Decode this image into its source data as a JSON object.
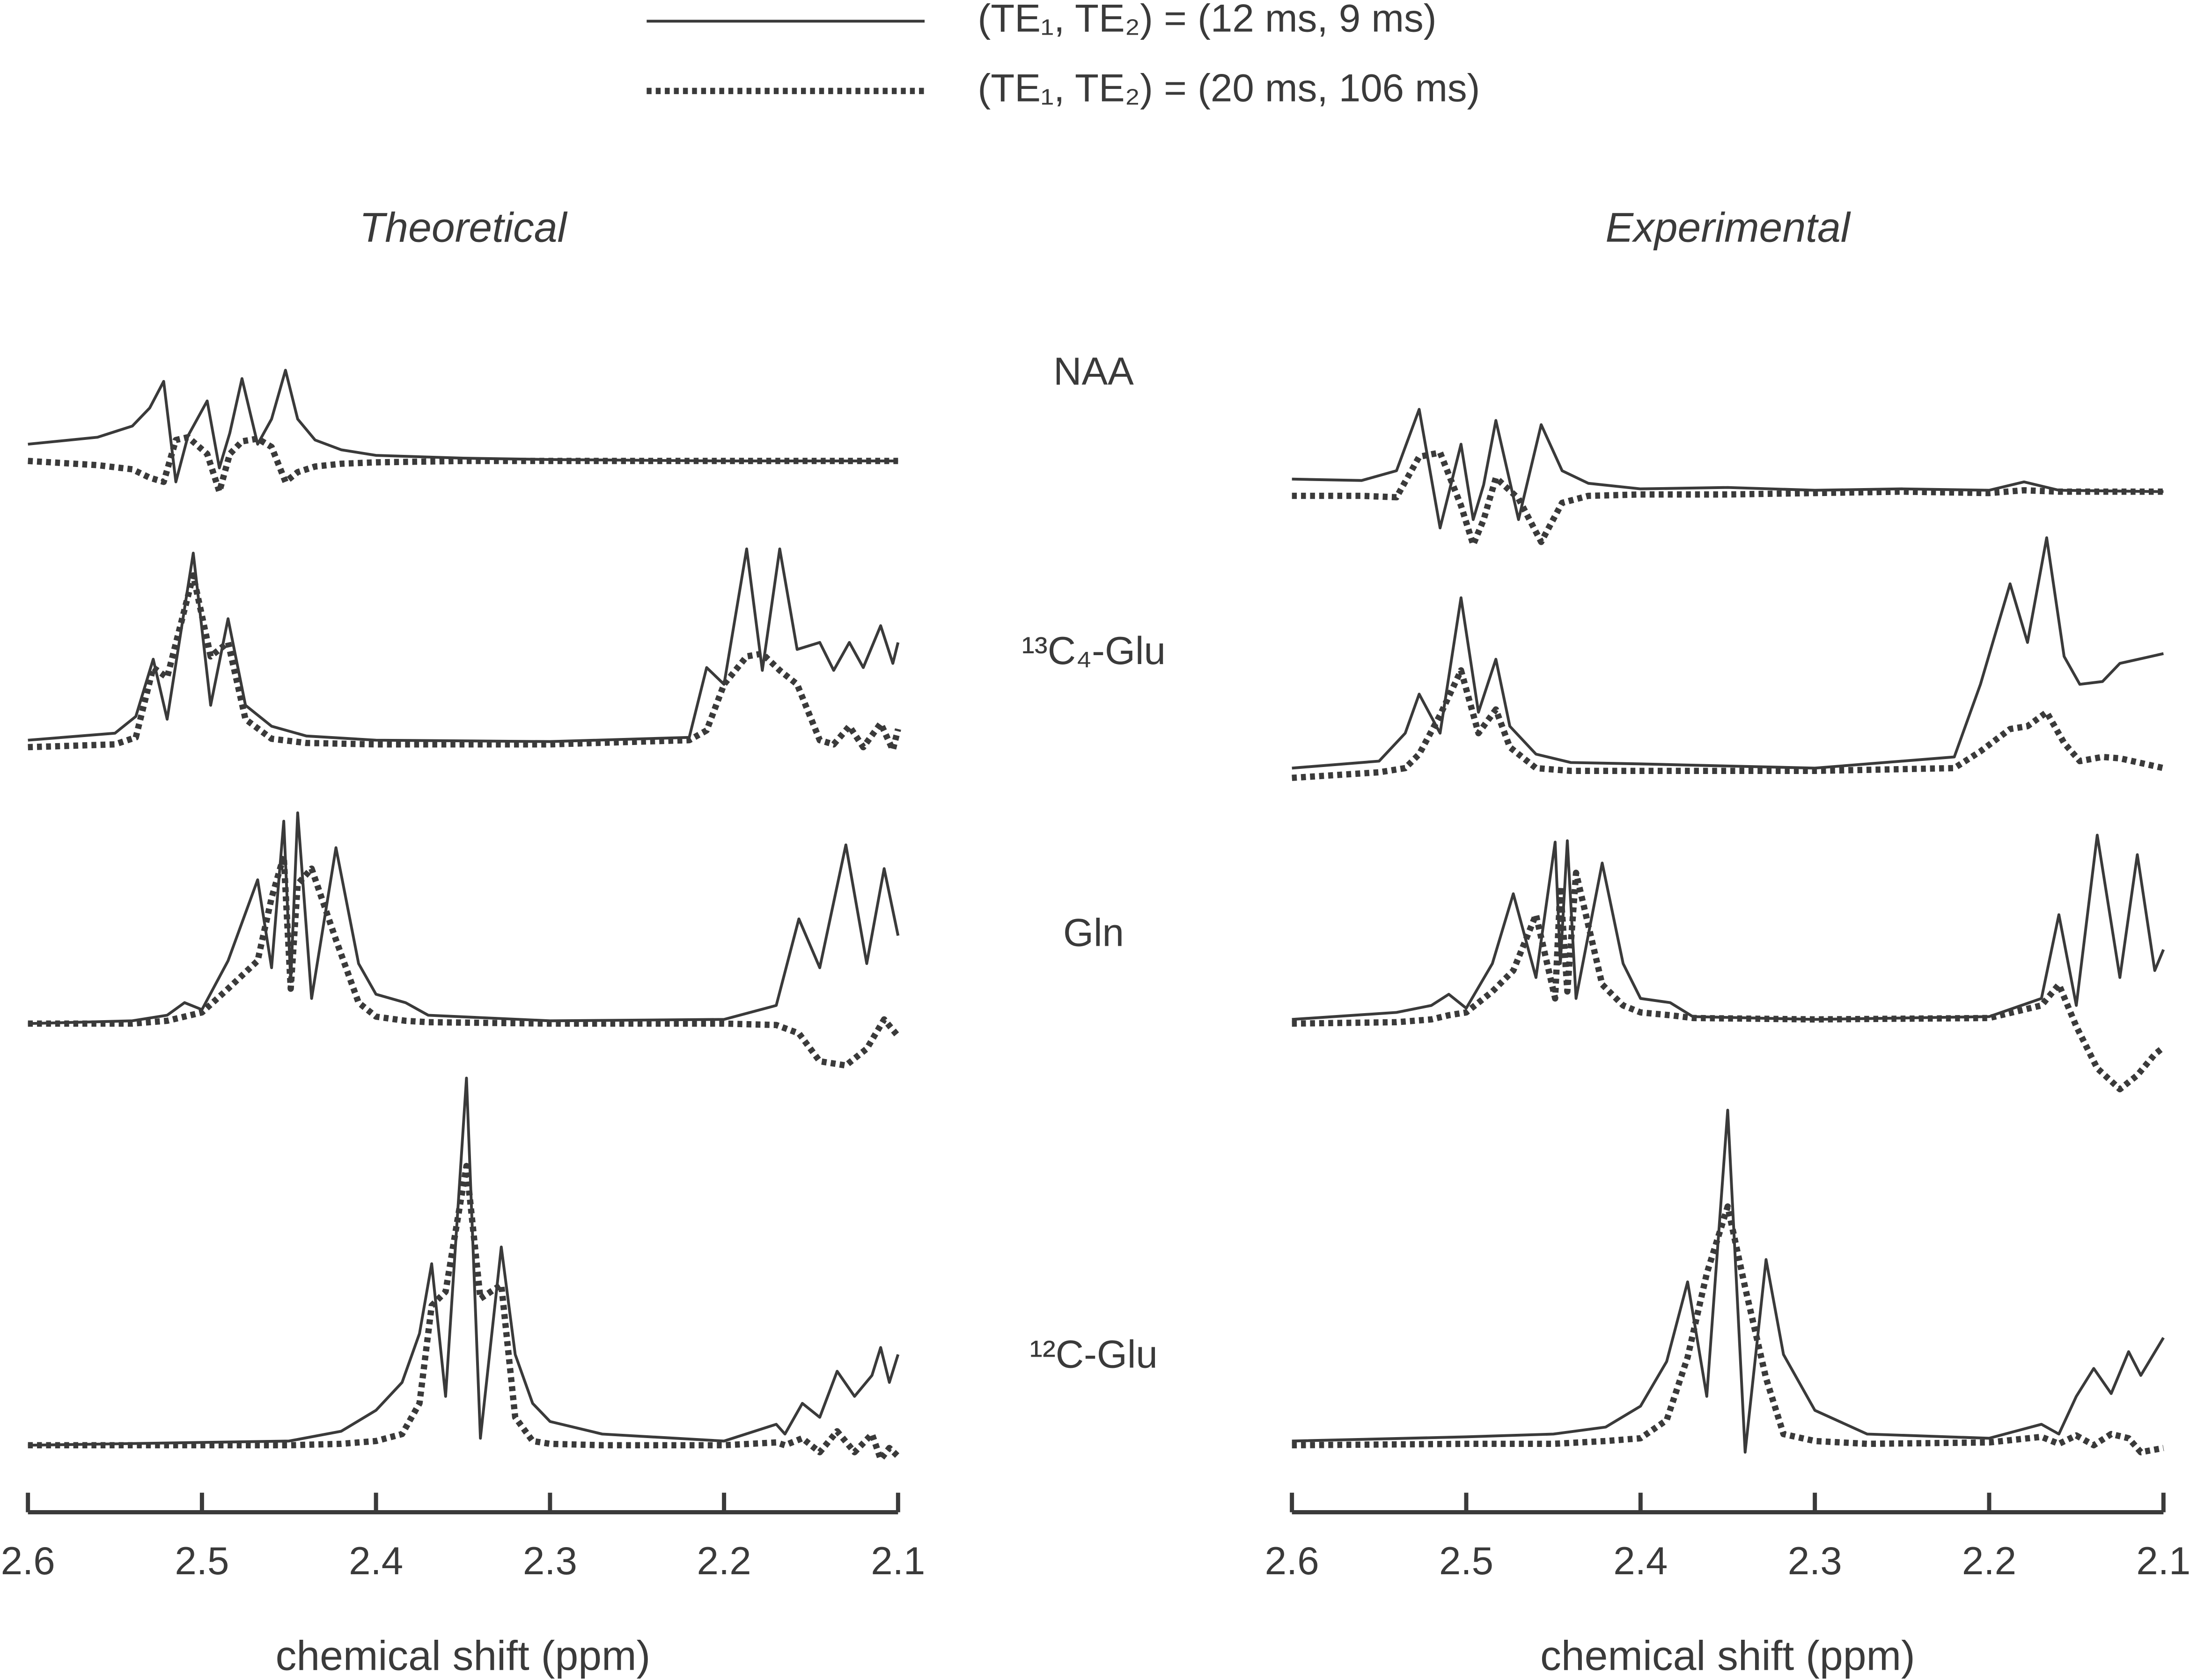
{
  "legend": {
    "entries": [
      {
        "name": "(TE₁, TE₂) = (12 ms, 9 ms)",
        "style": "solid"
      },
      {
        "name": "(TE₁, TE₂) = (20 ms, 106 ms)",
        "style": "dotted"
      }
    ],
    "color": "#3a3a3a"
  },
  "metabolites": [
    "NAA",
    "¹³C₄-Glu",
    "Gln",
    "¹²C-Glu"
  ],
  "chart_data": [
    {
      "type": "line",
      "title": "Theoretical",
      "xlabel": "chemical shift (ppm)",
      "xlim": [
        2.6,
        2.1
      ],
      "xticks": [
        2.6,
        2.5,
        2.4,
        2.3,
        2.2,
        2.1
      ],
      "ylim": [
        -60,
        280
      ],
      "rows": [
        {
          "x": [
            2.6,
            2.56,
            2.54,
            2.53,
            2.522,
            2.515,
            2.508,
            2.497,
            2.49,
            2.484,
            2.477,
            2.468,
            2.46,
            2.452,
            2.445,
            2.435,
            2.42,
            2.4,
            2.35,
            2.3,
            2.2,
            2.1
          ],
          "series": [
            {
              "values": [
                12,
                17,
                25,
                38,
                57,
                -15,
                18,
                43,
                -5,
                20,
                59,
                12,
                30,
                65,
                30,
                15,
                8,
                4,
                2,
                1,
                0,
                0
              ]
            },
            {
              "values": [
                0,
                -3,
                -6,
                -12,
                -15,
                15,
                17,
                5,
                -22,
                5,
                14,
                16,
                10,
                -15,
                -8,
                -4,
                -2,
                -1,
                0,
                0,
                0,
                0
              ]
            }
          ]
        },
        {
          "x": [
            2.6,
            2.55,
            2.538,
            2.528,
            2.52,
            2.505,
            2.495,
            2.485,
            2.475,
            2.46,
            2.44,
            2.4,
            2.3,
            2.22,
            2.21,
            2.2,
            2.187,
            2.178,
            2.168,
            2.158,
            2.145,
            2.137,
            2.128,
            2.12,
            2.11,
            2.103,
            2.1
          ],
          "series": [
            {
              "values": [
                3,
                8,
                20,
                61,
                18,
                137,
                28,
                90,
                28,
                13,
                6,
                3,
                2,
                5,
                55,
                43,
                140,
                53,
                140,
                68,
                73,
                53,
                73,
                55,
                85,
                58,
                73
              ]
            },
            {
              "values": [
                -2,
                0,
                5,
                55,
                48,
                121,
                63,
                73,
                18,
                4,
                1,
                0,
                0,
                3,
                10,
                43,
                63,
                65,
                53,
                43,
                3,
                0,
                13,
                -2,
                15,
                -4,
                11
              ]
            }
          ]
        },
        {
          "x": [
            2.6,
            2.54,
            2.52,
            2.51,
            2.5,
            2.485,
            2.468,
            2.46,
            2.453,
            2.449,
            2.445,
            2.437,
            2.423,
            2.41,
            2.4,
            2.383,
            2.37,
            2.3,
            2.2,
            2.17,
            2.157,
            2.145,
            2.13,
            2.118,
            2.108,
            2.1
          ],
          "series": [
            {
              "values": [
                0,
                2,
                6,
                15,
                10,
                45,
                103,
                40,
                145,
                30,
                151,
                18,
                126,
                43,
                21,
                15,
                6,
                2,
                3,
                13,
                75,
                40,
                128,
                43,
                111,
                63
              ]
            },
            {
              "values": [
                0,
                0,
                2,
                5,
                8,
                25,
                45,
                90,
                120,
                25,
                100,
                111,
                60,
                15,
                5,
                2,
                1,
                0,
                0,
                -1,
                -7,
                -27,
                -30,
                -18,
                3,
                -9
              ]
            }
          ]
        },
        {
          "x": [
            2.6,
            2.45,
            2.42,
            2.4,
            2.385,
            2.375,
            2.368,
            2.36,
            2.348,
            2.34,
            2.328,
            2.32,
            2.31,
            2.3,
            2.27,
            2.2,
            2.17,
            2.165,
            2.155,
            2.145,
            2.135,
            2.125,
            2.115,
            2.11,
            2.105,
            2.1
          ],
          "series": [
            {
              "values": [
                0,
                3,
                10,
                25,
                45,
                80,
                130,
                35,
                263,
                5,
                142,
                65,
                30,
                17,
                8,
                3,
                15,
                8,
                30,
                20,
                53,
                35,
                50,
                70,
                45,
                65
              ]
            },
            {
              "values": [
                0,
                0,
                1,
                3,
                8,
                30,
                100,
                110,
                200,
                105,
                115,
                20,
                3,
                1,
                0,
                0,
                2,
                0,
                5,
                -5,
                10,
                -5,
                8,
                -10,
                -2,
                -8
              ]
            }
          ]
        }
      ]
    },
    {
      "type": "line",
      "title": "Experimental",
      "xlabel": "chemical shift (ppm)",
      "xlim": [
        2.6,
        2.1
      ],
      "xticks": [
        2.6,
        2.5,
        2.4,
        2.3,
        2.2,
        2.1
      ],
      "ylim": [
        -60,
        280
      ],
      "rows": [
        {
          "x": [
            2.6,
            2.56,
            2.54,
            2.527,
            2.515,
            2.503,
            2.496,
            2.49,
            2.483,
            2.47,
            2.457,
            2.445,
            2.43,
            2.4,
            2.35,
            2.3,
            2.25,
            2.2,
            2.18,
            2.16,
            2.1
          ],
          "series": [
            {
              "values": [
                9,
                8,
                15,
                59,
                -26,
                34,
                -20,
                5,
                51,
                -20,
                48,
                15,
                6,
                2,
                3,
                1,
                2,
                1,
                7,
                1,
                0
              ]
            },
            {
              "values": [
                -3,
                -3,
                -4,
                25,
                28,
                -10,
                -38,
                -20,
                10,
                -5,
                -36,
                -8,
                -3,
                -2,
                -2,
                -1,
                0,
                -1,
                1,
                0,
                0
              ]
            }
          ]
        },
        {
          "x": [
            2.6,
            2.55,
            2.535,
            2.527,
            2.515,
            2.503,
            2.493,
            2.483,
            2.475,
            2.46,
            2.44,
            2.4,
            2.3,
            2.22,
            2.205,
            2.188,
            2.178,
            2.167,
            2.157,
            2.148,
            2.135,
            2.125,
            2.1
          ],
          "series": [
            {
              "values": [
                0,
                5,
                25,
                53,
                25,
                122,
                40,
                78,
                30,
                10,
                4,
                3,
                0,
                8,
                60,
                132,
                90,
                165,
                80,
                60,
                62,
                75,
                82
              ]
            },
            {
              "values": [
                -7,
                -3,
                0,
                10,
                38,
                70,
                25,
                42,
                15,
                0,
                -2,
                -2,
                -2,
                0,
                12,
                28,
                30,
                40,
                18,
                5,
                8,
                7,
                0
              ]
            }
          ]
        },
        {
          "x": [
            2.6,
            2.54,
            2.52,
            2.51,
            2.5,
            2.485,
            2.473,
            2.46,
            2.449,
            2.446,
            2.442,
            2.437,
            2.422,
            2.41,
            2.4,
            2.383,
            2.37,
            2.3,
            2.2,
            2.17,
            2.16,
            2.15,
            2.138,
            2.125,
            2.115,
            2.105,
            2.1
          ],
          "series": [
            {
              "values": [
                0,
                5,
                10,
                18,
                8,
                40,
                90,
                30,
                127,
                40,
                128,
                15,
                112,
                40,
                15,
                12,
                2,
                0,
                2,
                15,
                75,
                10,
                132,
                30,
                118,
                35,
                50
              ]
            },
            {
              "values": [
                -3,
                -2,
                0,
                3,
                5,
                20,
                35,
                75,
                15,
                95,
                20,
                105,
                25,
                10,
                5,
                3,
                1,
                0,
                1,
                10,
                25,
                -5,
                -35,
                -50,
                -40,
                -25,
                -20
              ]
            }
          ]
        },
        {
          "x": [
            2.6,
            2.5,
            2.45,
            2.42,
            2.4,
            2.385,
            2.373,
            2.362,
            2.35,
            2.34,
            2.328,
            2.318,
            2.3,
            2.27,
            2.2,
            2.17,
            2.16,
            2.15,
            2.14,
            2.13,
            2.12,
            2.113,
            2.1
          ],
          "series": [
            {
              "values": [
                0,
                3,
                5,
                10,
                25,
                57,
                114,
                32,
                237,
                -8,
                130,
                62,
                22,
                5,
                2,
                12,
                5,
                32,
                52,
                34,
                64,
                47,
                74
              ]
            },
            {
              "values": [
                -3,
                -2,
                -2,
                0,
                2,
                15,
                60,
                120,
                168,
                110,
                45,
                5,
                0,
                -2,
                -1,
                3,
                -2,
                4,
                -3,
                5,
                2,
                -8,
                -5
              ]
            }
          ]
        }
      ]
    }
  ]
}
